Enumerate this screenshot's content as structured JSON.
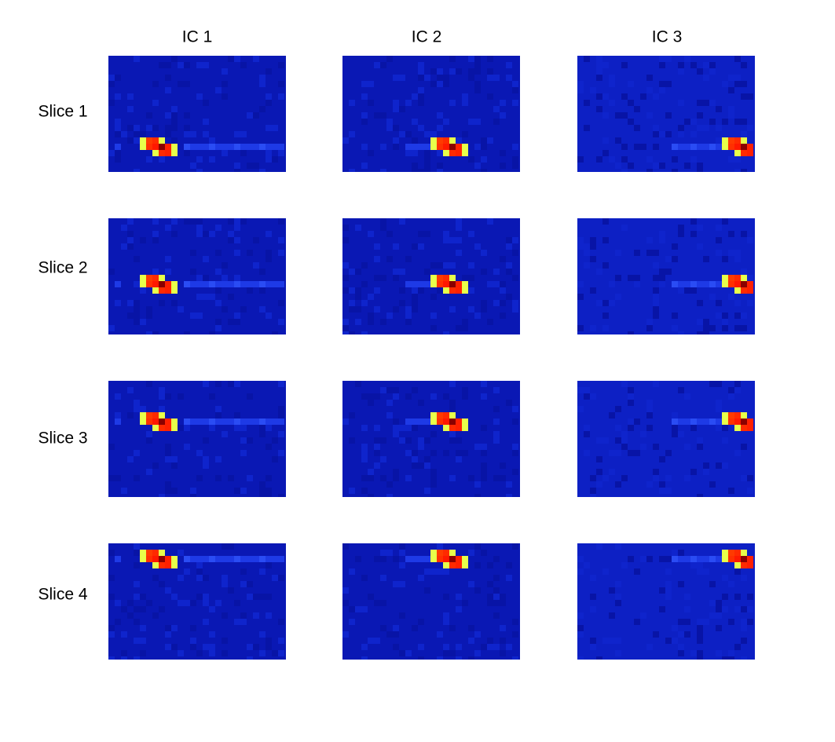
{
  "figure": {
    "column_labels": [
      "IC 1",
      "IC 2",
      "IC 3"
    ],
    "row_labels": [
      "Slice 1",
      "Slice 2",
      "Slice 3",
      "Slice 4"
    ]
  }
}
